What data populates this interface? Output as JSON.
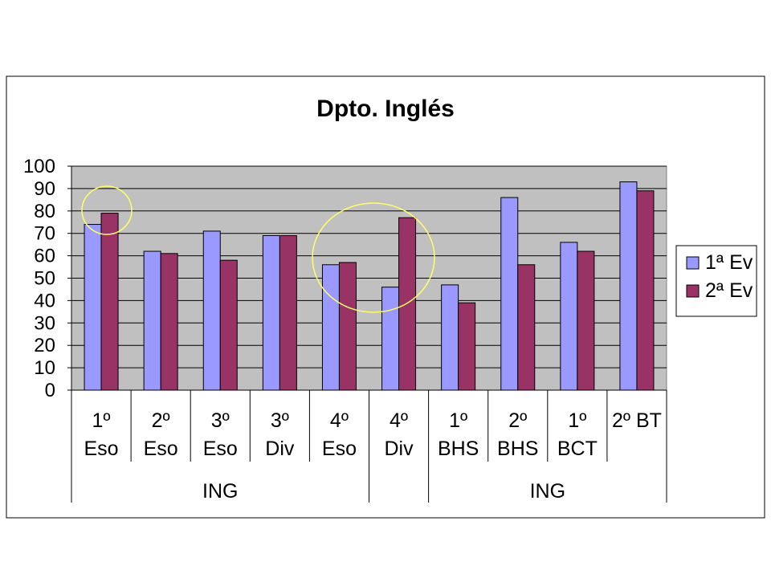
{
  "chart_data": {
    "type": "bar",
    "title": "Dpto. Inglés",
    "categories": [
      [
        "1º",
        "Eso"
      ],
      [
        "2º",
        "Eso"
      ],
      [
        "3º",
        "Eso"
      ],
      [
        "3º",
        "Div"
      ],
      [
        "4º",
        "Eso"
      ],
      [
        "4º",
        "Div"
      ],
      [
        "1º",
        "BHS"
      ],
      [
        "2º",
        "BHS"
      ],
      [
        "1º",
        "BCT"
      ],
      [
        "2º BT"
      ]
    ],
    "category_groups": [
      {
        "label": "ING",
        "span": [
          0,
          4
        ]
      },
      {
        "label": "ING",
        "span": [
          5,
          9
        ]
      }
    ],
    "series": [
      {
        "name": "1ª Ev",
        "color": "#9999ff",
        "values": [
          74,
          62,
          71,
          69,
          56,
          46,
          47,
          86,
          66,
          93
        ]
      },
      {
        "name": "2ª Ev",
        "color": "#993366",
        "values": [
          79,
          61,
          58,
          69,
          57,
          77,
          39,
          56,
          62,
          89
        ]
      }
    ],
    "ylim": [
      0,
      100
    ],
    "yticks": [
      0,
      10,
      20,
      30,
      40,
      50,
      60,
      70,
      80,
      90,
      100
    ],
    "grid": true,
    "plot_background": "#c0c0c0",
    "legend": "right",
    "annotations": [
      {
        "shape": "circle",
        "color": "#ffff66",
        "category_index": 0
      },
      {
        "shape": "circle",
        "color": "#ffff66",
        "category_index": 4
      }
    ]
  }
}
